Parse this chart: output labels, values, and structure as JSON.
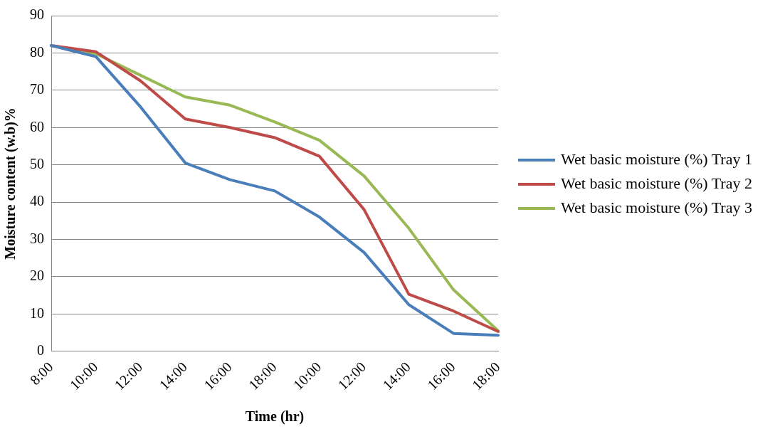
{
  "chart_data": {
    "type": "line",
    "xlabel": "Time (hr)",
    "ylabel": "Moisture content (w.b)%",
    "categories": [
      "8:00",
      "10:00",
      "12:00",
      "14:00",
      "16:00",
      "18:00",
      "10:00",
      "12:00",
      "14:00",
      "16:00",
      "18:00"
    ],
    "series": [
      {
        "name": "Wet basic moisture (%) Tray 1",
        "color": "#4a7ebb",
        "values": [
          82,
          79,
          65.5,
          50.5,
          46,
          43,
          36,
          26.5,
          12.5,
          4.8,
          4.3
        ]
      },
      {
        "name": "Wet basic moisture (%) Tray 2",
        "color": "#be4b48",
        "values": [
          82,
          80.3,
          72.5,
          62.3,
          60,
          57.3,
          52.3,
          38,
          15.3,
          10.8,
          5.3
        ]
      },
      {
        "name": "Wet basic moisture (%) Tray 3",
        "color": "#98b954",
        "values": [
          82,
          79.8,
          74,
          68.2,
          66,
          61.5,
          56.6,
          47,
          33,
          16.5,
          5.5
        ]
      }
    ],
    "ylim": [
      0,
      90
    ],
    "yticks": [
      0,
      10,
      20,
      30,
      40,
      50,
      60,
      70,
      80,
      90
    ],
    "grid": "y",
    "legend": "right",
    "marker": "none",
    "line_style": "solid"
  }
}
